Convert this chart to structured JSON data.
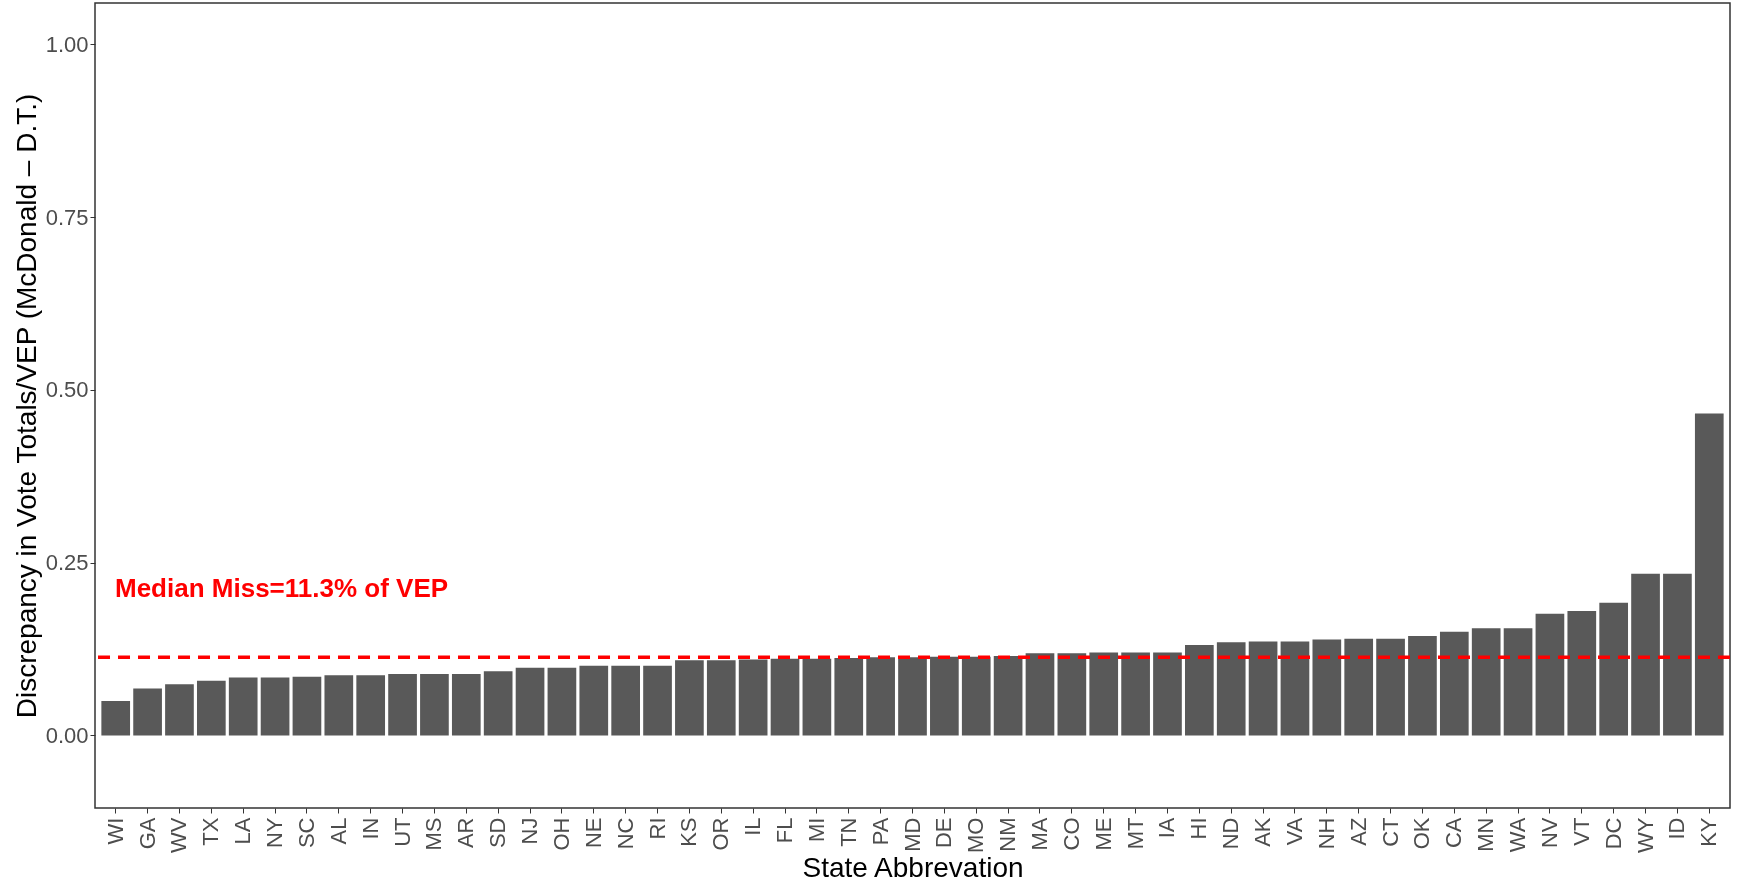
{
  "chart_data": {
    "type": "bar",
    "xlabel": "State Abbrevation",
    "ylabel": "Discrepancy in Vote Totals/VEP (McDonald – D.T.)",
    "categories": [
      "WI",
      "GA",
      "WV",
      "TX",
      "LA",
      "NY",
      "SC",
      "AL",
      "IN",
      "UT",
      "MS",
      "AR",
      "SD",
      "NJ",
      "OH",
      "NE",
      "NC",
      "RI",
      "KS",
      "OR",
      "IL",
      "FL",
      "MI",
      "TN",
      "PA",
      "MD",
      "DE",
      "MO",
      "NM",
      "MA",
      "CO",
      "ME",
      "MT",
      "IA",
      "HI",
      "ND",
      "AK",
      "VA",
      "NH",
      "AZ",
      "CT",
      "OK",
      "CA",
      "MN",
      "WA",
      "NV",
      "VT",
      "DC",
      "WY",
      "ID",
      "KY"
    ],
    "values": [
      0.05,
      0.068,
      0.074,
      0.079,
      0.084,
      0.084,
      0.085,
      0.087,
      0.087,
      0.089,
      0.089,
      0.089,
      0.093,
      0.098,
      0.098,
      0.101,
      0.101,
      0.101,
      0.109,
      0.109,
      0.11,
      0.111,
      0.111,
      0.112,
      0.113,
      0.113,
      0.114,
      0.114,
      0.115,
      0.119,
      0.119,
      0.12,
      0.12,
      0.12,
      0.131,
      0.135,
      0.136,
      0.136,
      0.139,
      0.14,
      0.14,
      0.144,
      0.15,
      0.155,
      0.155,
      0.176,
      0.18,
      0.192,
      0.234,
      0.234,
      0.466
    ],
    "color": "#595959",
    "ylim": [
      -0.105,
      1.06
    ],
    "yticks": [
      {
        "value": 0,
        "label": "0.00"
      },
      {
        "value": 0.25,
        "label": "0.25"
      },
      {
        "value": 0.5,
        "label": "0.50"
      },
      {
        "value": 0.75,
        "label": "0.75"
      },
      {
        "value": 1,
        "label": "1.00"
      }
    ],
    "grid": false,
    "ref_lines": [
      {
        "axis": "y",
        "value": 0.113,
        "label": "Median Miss=11.3% of VEP",
        "color": "#ff0000",
        "line_style": "dashed"
      }
    ]
  }
}
